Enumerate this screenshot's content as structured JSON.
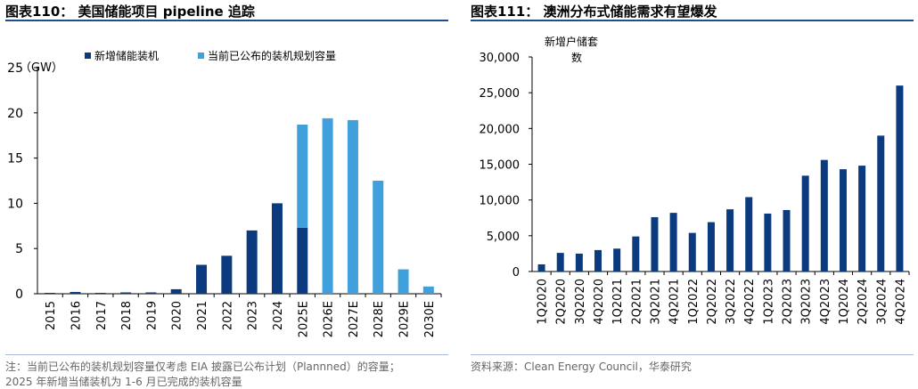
{
  "left_panel": {
    "title": "图表110： 美国储能项目 pipeline 追踪",
    "note_line1": "注：当前已公布的装机规划容量仅考虑 EIA 披露已公布计划（Plannned）的容量；",
    "note_line2": "2025 年新增当储装机为 1-6 月已完成的装机容量"
  },
  "right_panel": {
    "title": "图表111： 澳洲分布式储能需求有望爆发",
    "source": "资料来源：Clean Energy Council，华泰研究"
  },
  "colors": {
    "dark": "#0b3a7e",
    "light": "#3fa0dc",
    "rule": "#1f4e8c"
  },
  "chart_data": [
    {
      "type": "bar",
      "stacked": true,
      "unit_label": "（GW）",
      "categories": [
        "2015",
        "2016",
        "2017",
        "2018",
        "2019",
        "2020",
        "2021",
        "2022",
        "2023",
        "2024",
        "2025E",
        "2026E",
        "2027E",
        "2028E",
        "2029E",
        "2030E"
      ],
      "series": [
        {
          "name": "新增储能装机",
          "color": "#0b3a7e",
          "values": [
            0.1,
            0.2,
            0.1,
            0.15,
            0.15,
            0.5,
            3.2,
            4.2,
            7.0,
            10.0,
            7.3,
            0,
            0,
            0,
            0,
            0
          ]
        },
        {
          "name": "当前已公布的装机规划容量",
          "color": "#3fa0dc",
          "values": [
            0,
            0,
            0,
            0,
            0,
            0,
            0,
            0,
            0,
            0,
            11.4,
            19.4,
            19.2,
            12.5,
            2.7,
            0.8
          ]
        }
      ],
      "ylim": [
        0,
        25
      ],
      "yticks": [
        0,
        5,
        10,
        15,
        20,
        25
      ],
      "legend_position": "top"
    },
    {
      "type": "bar",
      "ylabel": "新增户储套数",
      "categories": [
        "1Q2020",
        "2Q2020",
        "3Q2020",
        "4Q2020",
        "1Q2021",
        "2Q2021",
        "3Q2021",
        "4Q2021",
        "1Q2022",
        "2Q2022",
        "3Q2022",
        "4Q2022",
        "1Q2023",
        "2Q2023",
        "3Q2023",
        "4Q2023",
        "1Q2024",
        "2Q2024",
        "3Q2024",
        "4Q2024"
      ],
      "values": [
        1000,
        2600,
        2500,
        3000,
        3200,
        4900,
        7600,
        8200,
        5400,
        6900,
        8700,
        10400,
        8100,
        8600,
        13400,
        15600,
        14300,
        14800,
        19000,
        26000
      ],
      "color": "#0b3a7e",
      "ylim": [
        0,
        30000
      ],
      "yticks": [
        0,
        5000,
        10000,
        15000,
        20000,
        25000,
        30000
      ],
      "yticklabels": [
        "0",
        "5,000",
        "10,000",
        "15,000",
        "20,000",
        "25,000",
        "30,000"
      ]
    }
  ]
}
